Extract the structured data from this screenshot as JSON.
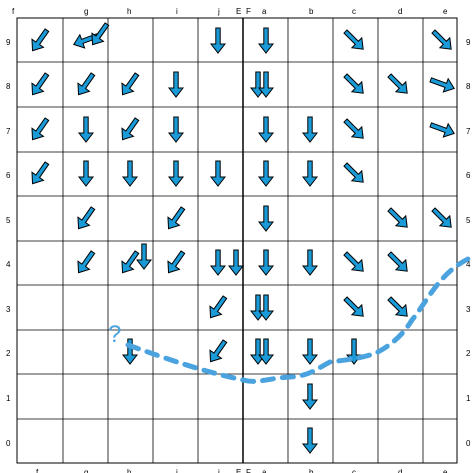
{
  "board": {
    "columns": [
      "f",
      "g",
      "h",
      "i",
      "j",
      "E",
      "F",
      "a",
      "b",
      "c",
      "d",
      "e"
    ],
    "rows": [
      "9",
      "8",
      "7",
      "6",
      "5",
      "4",
      "3",
      "2",
      "1",
      "0"
    ],
    "question_mark": "?",
    "colors": {
      "grid": "#000000",
      "arrow": "#1a9bd7",
      "arrow_outline": "#000000",
      "path": "#4aa3df",
      "label": "#000000"
    },
    "arrows": [
      {
        "row": 9,
        "col": "f",
        "dir": "down-left"
      },
      {
        "row": 9,
        "col": "g",
        "dir": "left-slight-down"
      },
      {
        "row": 9,
        "col": "g",
        "dir": "down-left"
      },
      {
        "row": 9,
        "col": "j",
        "dir": "down"
      },
      {
        "row": 9,
        "col": "a",
        "dir": "down"
      },
      {
        "row": 9,
        "col": "c",
        "dir": "down-right"
      },
      {
        "row": 9,
        "col": "e",
        "dir": "down-right"
      },
      {
        "row": 8,
        "col": "f",
        "dir": "down-left"
      },
      {
        "row": 8,
        "col": "g",
        "dir": "down-left"
      },
      {
        "row": 8,
        "col": "h",
        "dir": "down-left"
      },
      {
        "row": 8,
        "col": "i",
        "dir": "down"
      },
      {
        "row": 8,
        "col": "F",
        "dir": "down"
      },
      {
        "row": 8,
        "col": "a",
        "dir": "down"
      },
      {
        "row": 8,
        "col": "c",
        "dir": "down-right"
      },
      {
        "row": 8,
        "col": "d",
        "dir": "down-right"
      },
      {
        "row": 8,
        "col": "e",
        "dir": "right-down"
      },
      {
        "row": 7,
        "col": "f",
        "dir": "down-left"
      },
      {
        "row": 7,
        "col": "g",
        "dir": "down"
      },
      {
        "row": 7,
        "col": "h",
        "dir": "down-left"
      },
      {
        "row": 7,
        "col": "i",
        "dir": "down"
      },
      {
        "row": 7,
        "col": "a",
        "dir": "down"
      },
      {
        "row": 7,
        "col": "b",
        "dir": "down"
      },
      {
        "row": 7,
        "col": "c",
        "dir": "down-right"
      },
      {
        "row": 7,
        "col": "e",
        "dir": "right-down"
      },
      {
        "row": 6,
        "col": "f",
        "dir": "down-left"
      },
      {
        "row": 6,
        "col": "g",
        "dir": "down"
      },
      {
        "row": 6,
        "col": "h",
        "dir": "down"
      },
      {
        "row": 6,
        "col": "i",
        "dir": "down"
      },
      {
        "row": 6,
        "col": "j",
        "dir": "down"
      },
      {
        "row": 6,
        "col": "a",
        "dir": "down"
      },
      {
        "row": 6,
        "col": "b",
        "dir": "down"
      },
      {
        "row": 6,
        "col": "c",
        "dir": "down-right"
      },
      {
        "row": 5,
        "col": "g",
        "dir": "down-left"
      },
      {
        "row": 5,
        "col": "i",
        "dir": "down-left"
      },
      {
        "row": 5,
        "col": "a",
        "dir": "down"
      },
      {
        "row": 5,
        "col": "d",
        "dir": "down-right"
      },
      {
        "row": 5,
        "col": "e",
        "dir": "down-right"
      },
      {
        "row": 4,
        "col": "g",
        "dir": "down-left"
      },
      {
        "row": 4,
        "col": "h",
        "dir": "down-left"
      },
      {
        "row": 4,
        "col": "h",
        "dir": "down"
      },
      {
        "row": 4,
        "col": "i",
        "dir": "down-left"
      },
      {
        "row": 4,
        "col": "j",
        "dir": "down"
      },
      {
        "row": 4,
        "col": "E",
        "dir": "down"
      },
      {
        "row": 4,
        "col": "a",
        "dir": "down"
      },
      {
        "row": 4,
        "col": "b",
        "dir": "down"
      },
      {
        "row": 4,
        "col": "c",
        "dir": "down-right"
      },
      {
        "row": 4,
        "col": "d",
        "dir": "down-right"
      },
      {
        "row": 3,
        "col": "j",
        "dir": "down-left"
      },
      {
        "row": 3,
        "col": "F",
        "dir": "down"
      },
      {
        "row": 3,
        "col": "a",
        "dir": "down"
      },
      {
        "row": 3,
        "col": "c",
        "dir": "down-right"
      },
      {
        "row": 3,
        "col": "d",
        "dir": "down-right"
      },
      {
        "row": 2,
        "col": "h",
        "dir": "down"
      },
      {
        "row": 2,
        "col": "j",
        "dir": "down-left"
      },
      {
        "row": 2,
        "col": "F",
        "dir": "down"
      },
      {
        "row": 2,
        "col": "a",
        "dir": "down"
      },
      {
        "row": 2,
        "col": "b",
        "dir": "down"
      },
      {
        "row": 2,
        "col": "c",
        "dir": "down"
      },
      {
        "row": 1,
        "col": "b",
        "dir": "down"
      },
      {
        "row": 0,
        "col": "b",
        "dir": "down"
      }
    ]
  }
}
